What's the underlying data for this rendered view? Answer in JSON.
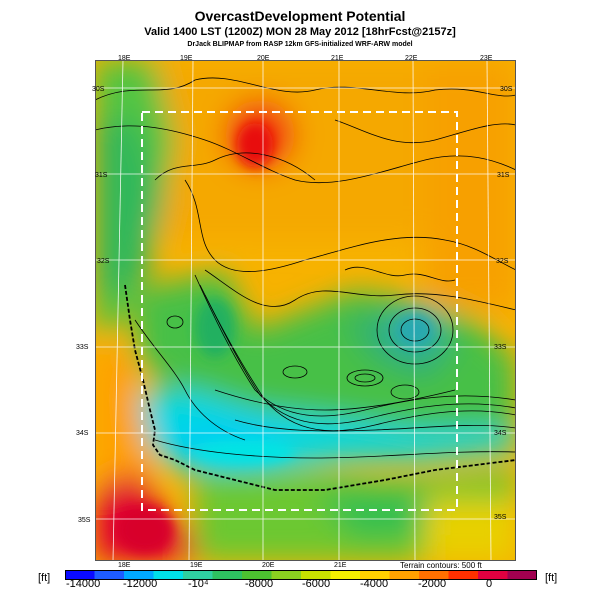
{
  "title": "OvercastDevelopment Potential",
  "subtitle": "Valid 1400 LST (1200Z) MON 28 May 2012 [18hrFcst@2157z]",
  "credit": "DrJack BLIPMAP from RASP 12km GFS-initialized WRF-ARW model",
  "lon_labels_top": [
    "18E",
    "19E",
    "20E",
    "21E",
    "22E",
    "23E"
  ],
  "lon_labels_bottom": [
    "18E",
    "19E",
    "20E",
    "21E"
  ],
  "lat_labels_left": [
    "30S",
    "31S",
    "32S",
    "33S",
    "34S",
    "35S"
  ],
  "lat_labels_right": [
    "30S",
    "31S",
    "32S",
    "33S",
    "34S",
    "35S"
  ],
  "terrain_note": "Terrain contours: 500 ft",
  "unit_left": "[ft]",
  "unit_right": "[ft]",
  "colorbar": {
    "labels": [
      "-14000",
      "-12000",
      "-10⁴",
      "-8000",
      "-6000",
      "-4000",
      "-2000",
      "0"
    ],
    "colors": [
      "#0a0aff",
      "#1e5cff",
      "#00a8ff",
      "#00e0e8",
      "#2fd0a0",
      "#2ec060",
      "#4cc030",
      "#8ad020",
      "#c8e000",
      "#f6f000",
      "#ffd000",
      "#ffa000",
      "#ff7000",
      "#ff3000",
      "#e00040",
      "#a00050"
    ]
  }
}
